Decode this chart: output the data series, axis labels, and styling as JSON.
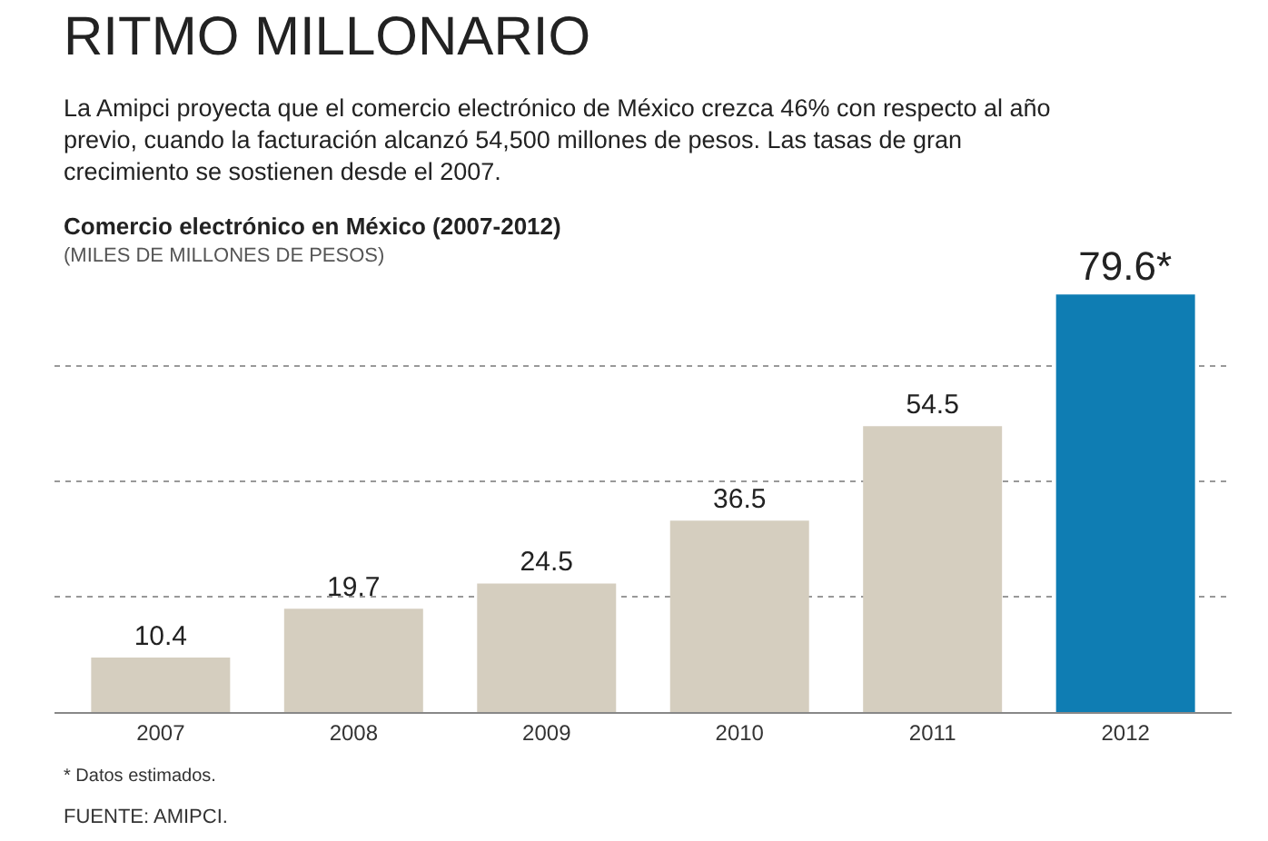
{
  "chart_data": {
    "type": "bar",
    "title": "RITMO MILLONARIO",
    "subtitle": "La Amipci proyecta que el comercio electrónico de México crezca 46% con respecto al año previo, cuando la facturación alcanzó 54,500 millones de pesos. Las tasas de gran crecimiento se sostienen desde el 2007.",
    "xlabel": "Comercio electrónico en México (2007-2012)",
    "ylabel": "(MILES DE MILLONES DE PESOS)",
    "categories": [
      "2007",
      "2008",
      "2009",
      "2010",
      "2011",
      "2012"
    ],
    "values": [
      10.4,
      19.7,
      24.5,
      36.5,
      54.5,
      79.6
    ],
    "value_labels": [
      "10.4",
      "19.7",
      "24.5",
      "36.5",
      "54.5",
      "79.6*"
    ],
    "colors": [
      "#d5cebf",
      "#d5cebf",
      "#d5cebf",
      "#d5cebf",
      "#d5cebf",
      "#0f7db3"
    ],
    "yticks": [
      {
        "value": 22,
        "label": null
      },
      {
        "value": 44,
        "label": null
      },
      {
        "value": 66,
        "label": null
      }
    ],
    "grid": "y",
    "annotations": [
      "* Datos estimados.",
      "FUENTE: AMIPCI."
    ]
  }
}
